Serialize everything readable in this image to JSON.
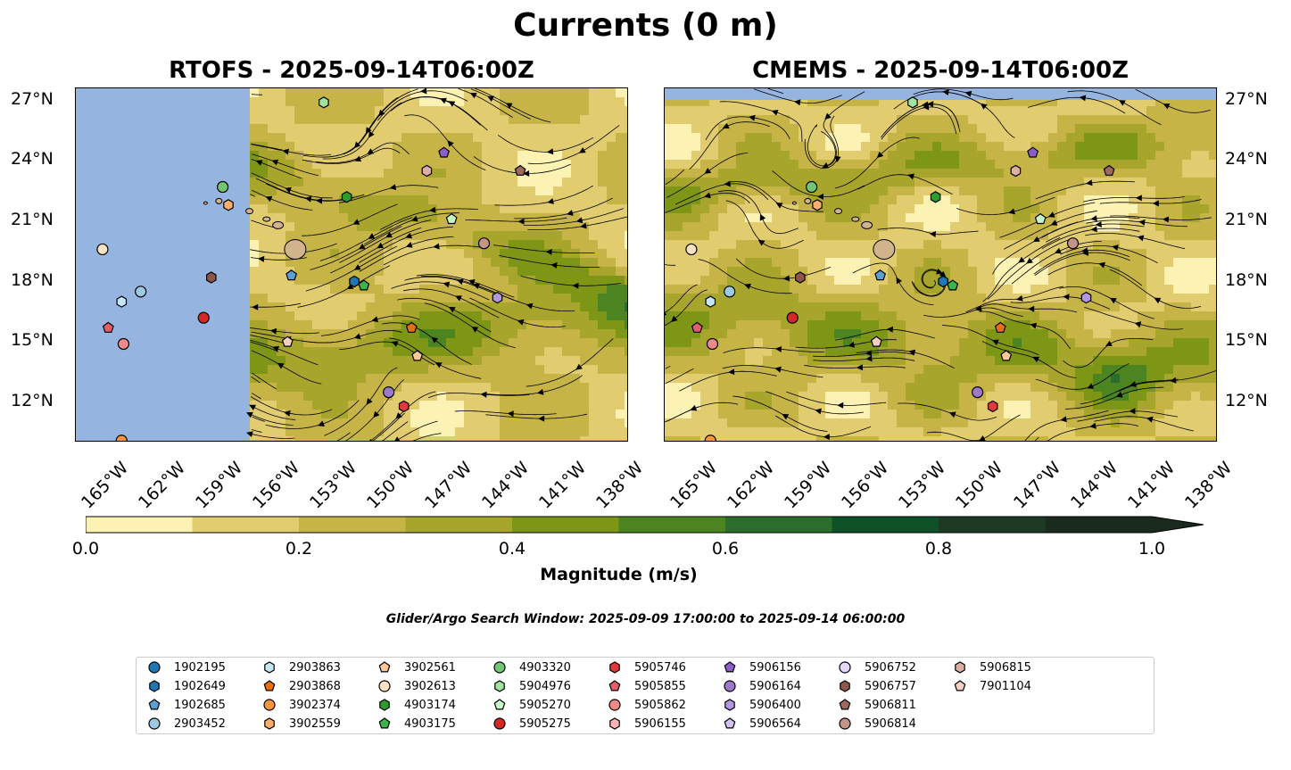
{
  "suptitle": "Currents (0 m)",
  "panels": [
    {
      "id": "left",
      "title": "RTOFS - 2025-09-14T06:00Z"
    },
    {
      "id": "right",
      "title": "CMEMS - 2025-09-14T06:00Z"
    }
  ],
  "lat_ticks": [
    "27°N",
    "24°N",
    "21°N",
    "18°N",
    "15°N",
    "12°N"
  ],
  "lon_ticks": [
    "165°W",
    "162°W",
    "159°W",
    "156°W",
    "153°W",
    "150°W",
    "147°W",
    "144°W",
    "141°W",
    "138°W"
  ],
  "colorbar": {
    "label": "Magnitude (m/s)",
    "ticks": [
      "0.0",
      "0.2",
      "0.4",
      "0.6",
      "0.8",
      "1.0"
    ],
    "colors": [
      "#fbf2b4",
      "#e2cc70",
      "#c7b447",
      "#a8a52c",
      "#7d9616",
      "#4c8422",
      "#2a6d2c",
      "#0f5126",
      "#1f3a24",
      "#1b2a1e"
    ],
    "extend": "max"
  },
  "colors": {
    "land_mask": "#96b4e0",
    "islands": "#d2b48c",
    "stream": "#000000"
  },
  "search_window": "Glider/Argo Search Window: 2025-09-09 17:00:00 to 2025-09-14 06:00:00",
  "legend": [
    {
      "id": "1902195",
      "color": "#1f77b4",
      "marker": "circle"
    },
    {
      "id": "1902649",
      "color": "#1f77b4",
      "marker": "hexagon"
    },
    {
      "id": "1902685",
      "color": "#5aa0d4",
      "marker": "pentagon"
    },
    {
      "id": "2903452",
      "color": "#9ecae1",
      "marker": "circle"
    },
    {
      "id": "2903863",
      "color": "#c6e6f6",
      "marker": "hexagon"
    },
    {
      "id": "2903868",
      "color": "#e8700f",
      "marker": "pentagon"
    },
    {
      "id": "3902374",
      "color": "#f59540",
      "marker": "circle"
    },
    {
      "id": "3902559",
      "color": "#fdae6b",
      "marker": "hexagon"
    },
    {
      "id": "3902561",
      "color": "#fdc99a",
      "marker": "pentagon"
    },
    {
      "id": "3902613",
      "color": "#fde2c4",
      "marker": "circle"
    },
    {
      "id": "4903174",
      "color": "#2c9c2c",
      "marker": "hexagon"
    },
    {
      "id": "4903175",
      "color": "#3cb44b",
      "marker": "pentagon"
    },
    {
      "id": "4903320",
      "color": "#74c476",
      "marker": "circle"
    },
    {
      "id": "5904976",
      "color": "#a1e3a1",
      "marker": "hexagon"
    },
    {
      "id": "5905270",
      "color": "#c7f5c7",
      "marker": "pentagon"
    },
    {
      "id": "5905275",
      "color": "#d62728",
      "marker": "circle"
    },
    {
      "id": "5905746",
      "color": "#e03a3c",
      "marker": "hexagon"
    },
    {
      "id": "5905855",
      "color": "#e35d6a",
      "marker": "pentagon"
    },
    {
      "id": "5905862",
      "color": "#f08a8a",
      "marker": "circle"
    },
    {
      "id": "5906155",
      "color": "#fbb4b4",
      "marker": "hexagon"
    },
    {
      "id": "5906156",
      "color": "#8b5fc7",
      "marker": "pentagon"
    },
    {
      "id": "5906164",
      "color": "#9c79cc",
      "marker": "circle"
    },
    {
      "id": "5906400",
      "color": "#b596e0",
      "marker": "hexagon"
    },
    {
      "id": "5906564",
      "color": "#d3c0f0",
      "marker": "pentagon"
    },
    {
      "id": "5906752",
      "color": "#e7d8fb",
      "marker": "circle"
    },
    {
      "id": "5906757",
      "color": "#8c564b",
      "marker": "hexagon"
    },
    {
      "id": "5906811",
      "color": "#a0685e",
      "marker": "pentagon"
    },
    {
      "id": "5906814",
      "color": "#c49486",
      "marker": "circle"
    },
    {
      "id": "5906815",
      "color": "#dcb0a4",
      "marker": "hexagon"
    },
    {
      "id": "7901104",
      "color": "#f4cfc4",
      "marker": "pentagon"
    }
  ],
  "map_extent": {
    "lon_min": -167,
    "lon_max": -138,
    "lat_min": 10,
    "lat_max": 27.6
  },
  "platforms": {
    "left": [
      {
        "id": "3902613",
        "lon": -165.6,
        "lat": 19.6
      },
      {
        "id": "2903863",
        "lon": -164.6,
        "lat": 17.0
      },
      {
        "id": "2903452",
        "lon": -163.6,
        "lat": 17.5
      },
      {
        "id": "5905855",
        "lon": -165.3,
        "lat": 15.7
      },
      {
        "id": "5905862",
        "lon": -164.5,
        "lat": 14.9
      },
      {
        "id": "3902374",
        "lon": -164.6,
        "lat": 10.1
      },
      {
        "id": "5905275",
        "lon": -160.3,
        "lat": 16.2
      },
      {
        "id": "5906757",
        "lon": -159.9,
        "lat": 18.2
      },
      {
        "id": "4903320",
        "lon": -159.3,
        "lat": 22.7
      },
      {
        "id": "3902559",
        "lon": -159.0,
        "lat": 21.8
      },
      {
        "id": "1902685",
        "lon": -155.7,
        "lat": 18.3
      },
      {
        "id": "5904976",
        "lon": -154.0,
        "lat": 26.9
      },
      {
        "id": "4903174",
        "lon": -152.8,
        "lat": 22.2
      },
      {
        "id": "1902649",
        "lon": -152.4,
        "lat": 18.0
      },
      {
        "id": "4903175",
        "lon": -151.9,
        "lat": 17.8
      },
      {
        "id": "7901104",
        "lon": -155.9,
        "lat": 15.0
      },
      {
        "id": "2903868",
        "lon": -149.4,
        "lat": 15.7
      },
      {
        "id": "3902561",
        "lon": -149.1,
        "lat": 14.3
      },
      {
        "id": "5906164",
        "lon": -150.6,
        "lat": 12.5
      },
      {
        "id": "5905746",
        "lon": -149.8,
        "lat": 11.8
      },
      {
        "id": "5906815",
        "lon": -148.6,
        "lat": 23.5
      },
      {
        "id": "5906156",
        "lon": -147.7,
        "lat": 24.4
      },
      {
        "id": "5905270",
        "lon": -147.3,
        "lat": 21.1
      },
      {
        "id": "5906814",
        "lon": -145.6,
        "lat": 19.9
      },
      {
        "id": "5906400",
        "lon": -144.9,
        "lat": 17.2
      },
      {
        "id": "5906811",
        "lon": -143.7,
        "lat": 23.5
      }
    ],
    "right": [
      {
        "id": "3902613",
        "lon": -165.6,
        "lat": 19.6
      },
      {
        "id": "2903863",
        "lon": -164.6,
        "lat": 17.0
      },
      {
        "id": "2903452",
        "lon": -163.6,
        "lat": 17.5
      },
      {
        "id": "5905855",
        "lon": -165.3,
        "lat": 15.7
      },
      {
        "id": "5905862",
        "lon": -164.5,
        "lat": 14.9
      },
      {
        "id": "3902374",
        "lon": -164.6,
        "lat": 10.1
      },
      {
        "id": "5905275",
        "lon": -160.3,
        "lat": 16.2
      },
      {
        "id": "5906757",
        "lon": -159.9,
        "lat": 18.2
      },
      {
        "id": "4903320",
        "lon": -159.3,
        "lat": 22.7
      },
      {
        "id": "3902559",
        "lon": -159.0,
        "lat": 21.8
      },
      {
        "id": "1902685",
        "lon": -155.7,
        "lat": 18.3
      },
      {
        "id": "5904976",
        "lon": -154.0,
        "lat": 26.9
      },
      {
        "id": "4903174",
        "lon": -152.8,
        "lat": 22.2
      },
      {
        "id": "1902649",
        "lon": -152.4,
        "lat": 18.0
      },
      {
        "id": "4903175",
        "lon": -151.9,
        "lat": 17.8
      },
      {
        "id": "7901104",
        "lon": -155.9,
        "lat": 15.0
      },
      {
        "id": "2903868",
        "lon": -149.4,
        "lat": 15.7
      },
      {
        "id": "3902561",
        "lon": -149.1,
        "lat": 14.3
      },
      {
        "id": "5906164",
        "lon": -150.6,
        "lat": 12.5
      },
      {
        "id": "5905746",
        "lon": -149.8,
        "lat": 11.8
      },
      {
        "id": "5906815",
        "lon": -148.6,
        "lat": 23.5
      },
      {
        "id": "5906156",
        "lon": -147.7,
        "lat": 24.4
      },
      {
        "id": "5905270",
        "lon": -147.3,
        "lat": 21.1
      },
      {
        "id": "5906814",
        "lon": -145.6,
        "lat": 19.9
      },
      {
        "id": "5906400",
        "lon": -144.9,
        "lat": 17.2
      },
      {
        "id": "5906811",
        "lon": -143.7,
        "lat": 23.5
      }
    ]
  }
}
